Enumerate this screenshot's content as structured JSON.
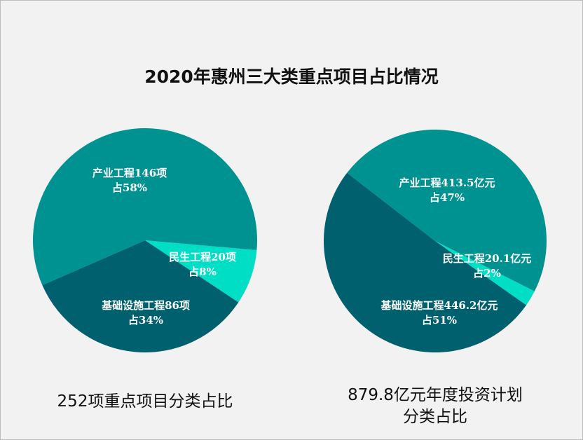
{
  "title": "2020年惠州三大类重点项目占比情况",
  "colors": {
    "industry": "#009191",
    "livelihood": "#00dfc6",
    "infrastructure": "#00606e",
    "background": "#f2f2f2"
  },
  "chart_data": [
    {
      "type": "pie",
      "caption": "252项重点项目分类占比",
      "slices": [
        {
          "name": "民生工程",
          "value": 20,
          "unit": "项",
          "percent": 8,
          "label_line1": "民生工程20项",
          "label_line2": "占8%",
          "color": "#00dfc6"
        },
        {
          "name": "基础设施工程",
          "value": 86,
          "unit": "项",
          "percent": 34,
          "label_line1": "基础设施工程86项",
          "label_line2": "占34%",
          "color": "#00606e"
        },
        {
          "name": "产业工程",
          "value": 146,
          "unit": "项",
          "percent": 58,
          "label_line1": "产业工程146项",
          "label_line2": "占58%",
          "color": "#009191"
        }
      ]
    },
    {
      "type": "pie",
      "caption_line1": "879.8亿元年度投资计划",
      "caption_line2": "分类占比",
      "slices": [
        {
          "name": "产业工程",
          "value": 413.5,
          "unit": "亿元",
          "percent": 47,
          "label_line1": "产业工程413.5亿元",
          "label_line2": "占47%",
          "color": "#009191"
        },
        {
          "name": "民生工程",
          "value": 20.1,
          "unit": "亿元",
          "percent": 2,
          "label_line1": "民生工程20.1亿元",
          "label_line2": "占2%",
          "color": "#00dfc6"
        },
        {
          "name": "基础设施工程",
          "value": 446.2,
          "unit": "亿元",
          "percent": 51,
          "label_line1": "基础设施工程446.2亿元",
          "label_line2": "占51%",
          "color": "#00606e"
        }
      ]
    }
  ]
}
